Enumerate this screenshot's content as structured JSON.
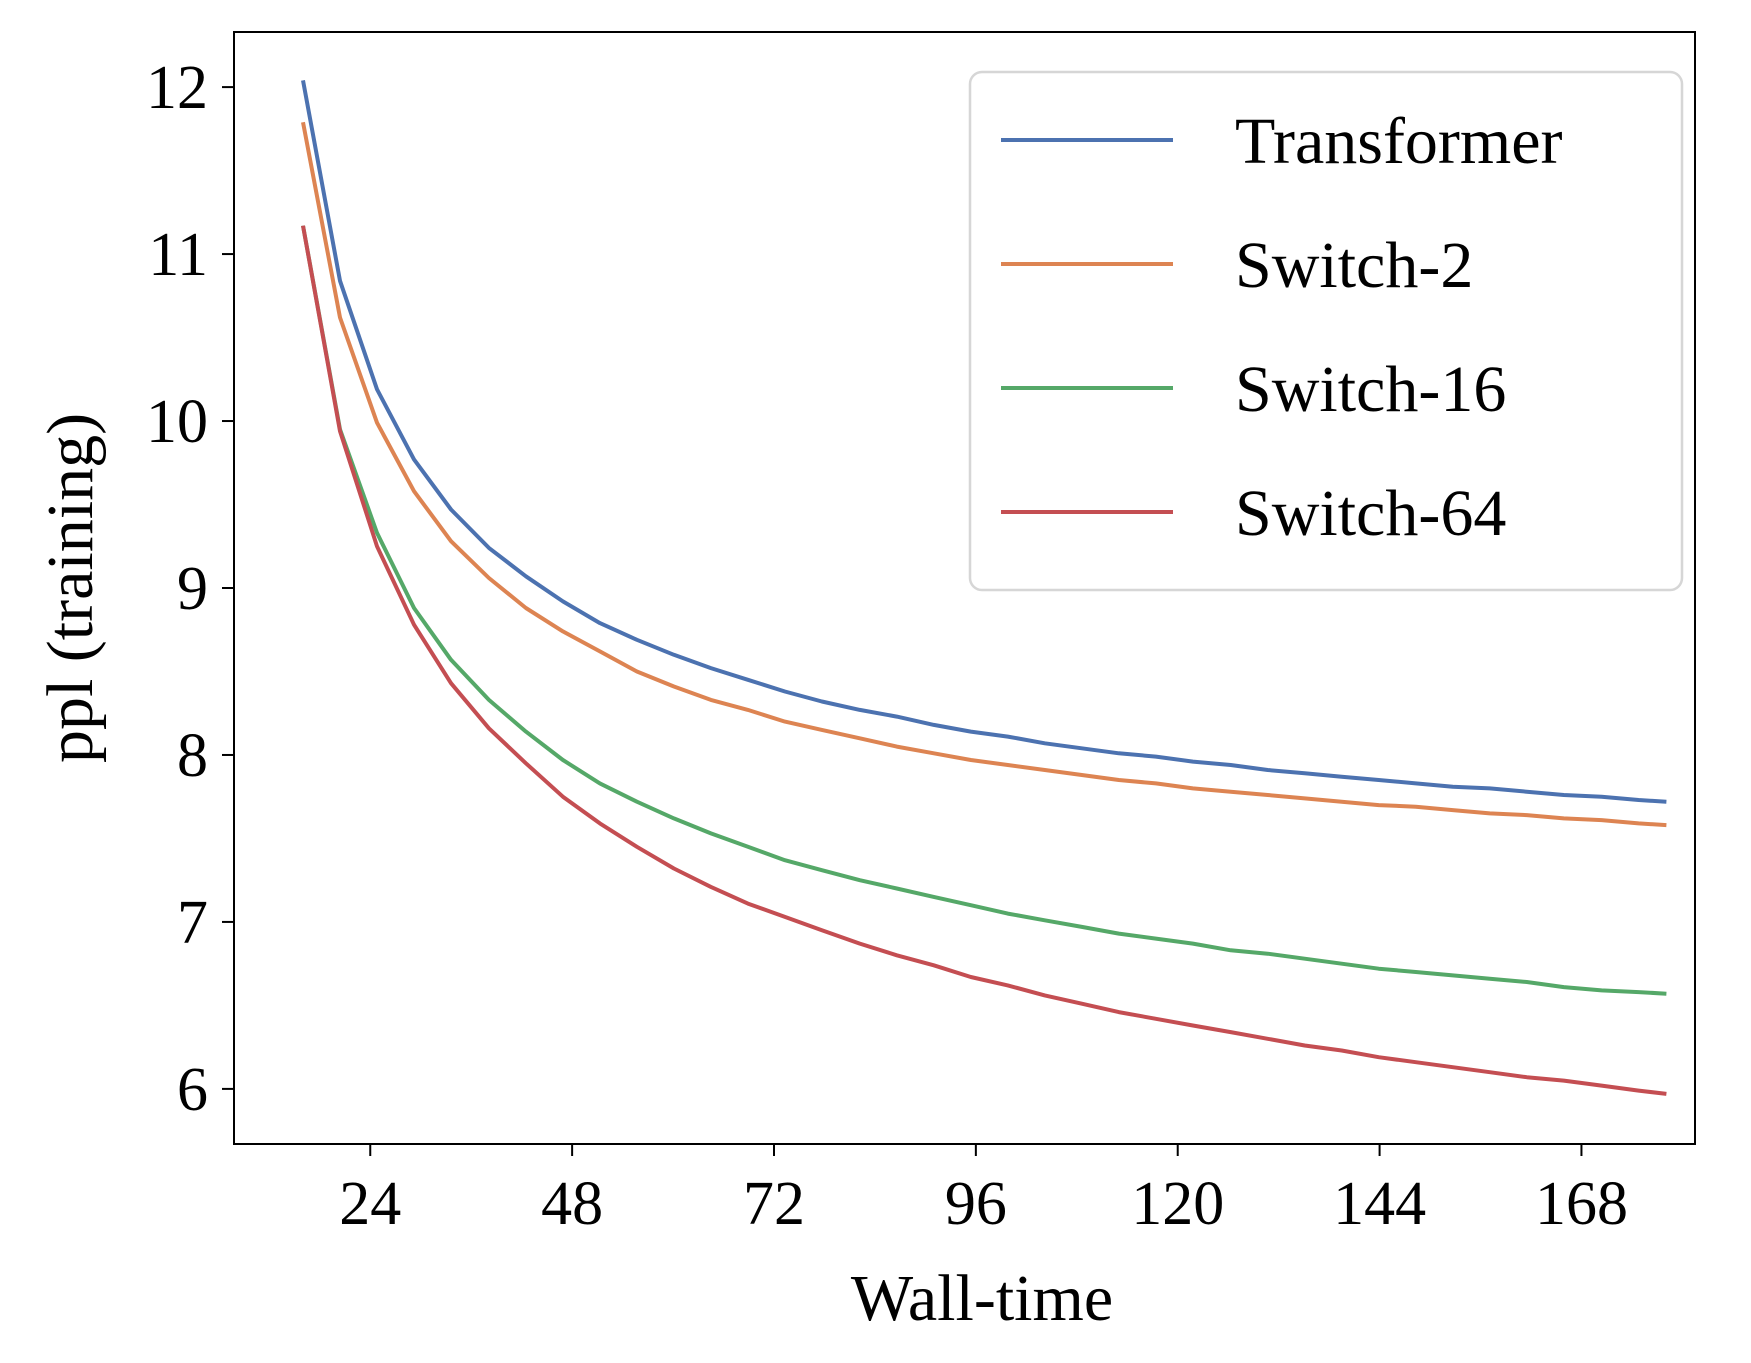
{
  "chart_data": {
    "type": "line",
    "title": "",
    "xlabel": "Wall-time",
    "ylabel": "ppl (training)",
    "xlim": [
      7.8,
      181.5
    ],
    "ylim": [
      5.67,
      12.33
    ],
    "xticks": [
      24,
      48,
      72,
      96,
      120,
      144,
      168
    ],
    "xtick_labels": [
      "24",
      "48",
      "72",
      "96",
      "120",
      144,
      168
    ],
    "yticks": [
      6,
      7,
      8,
      9,
      10,
      11,
      12
    ],
    "ytick_labels": [
      "6",
      "7",
      "8",
      "9",
      "10",
      "11",
      "12"
    ],
    "grid": false,
    "legend_position": "top-right",
    "x": [
      16,
      20.4,
      24.8,
      29.2,
      33.6,
      38.1,
      42.5,
      46.9,
      51.3,
      55.7,
      60.1,
      64.5,
      68.9,
      73.3,
      77.7,
      82.2,
      86.6,
      91,
      95.4,
      99.8,
      104.2,
      108.6,
      113,
      117.4,
      121.8,
      126.3,
      130.7,
      135.1,
      139.5,
      143.9,
      148.3,
      152.7,
      157.1,
      161.5,
      165.9,
      170.4,
      174.8,
      178.1
    ],
    "series": [
      {
        "name": "Transformer",
        "color": "#4C72B0",
        "values": [
          12.04,
          10.84,
          10.19,
          9.77,
          9.47,
          9.24,
          9.07,
          8.92,
          8.79,
          8.69,
          8.6,
          8.52,
          8.45,
          8.38,
          8.32,
          8.27,
          8.23,
          8.18,
          8.14,
          8.11,
          8.07,
          8.04,
          8.01,
          7.99,
          7.96,
          7.94,
          7.91,
          7.89,
          7.87,
          7.85,
          7.83,
          7.81,
          7.8,
          7.78,
          7.76,
          7.75,
          7.73,
          7.72
        ]
      },
      {
        "name": "Switch-2",
        "color": "#DD8452",
        "values": [
          11.79,
          10.62,
          9.99,
          9.58,
          9.28,
          9.06,
          8.88,
          8.74,
          8.62,
          8.5,
          8.41,
          8.33,
          8.27,
          8.2,
          8.15,
          8.1,
          8.05,
          8.01,
          7.97,
          7.94,
          7.91,
          7.88,
          7.85,
          7.83,
          7.8,
          7.78,
          7.76,
          7.74,
          7.72,
          7.7,
          7.69,
          7.67,
          7.65,
          7.64,
          7.62,
          7.61,
          7.59,
          7.58
        ]
      },
      {
        "name": "Switch-16",
        "color": "#55A868",
        "values": [
          11.17,
          9.95,
          9.33,
          8.88,
          8.57,
          8.33,
          8.14,
          7.97,
          7.83,
          7.72,
          7.62,
          7.53,
          7.45,
          7.37,
          7.31,
          7.25,
          7.2,
          7.15,
          7.1,
          7.05,
          7.01,
          6.97,
          6.93,
          6.9,
          6.87,
          6.83,
          6.81,
          6.78,
          6.75,
          6.72,
          6.7,
          6.68,
          6.66,
          6.64,
          6.61,
          6.59,
          6.58,
          6.57
        ]
      },
      {
        "name": "Switch-64",
        "color": "#C44E52",
        "values": [
          11.17,
          9.94,
          9.25,
          8.78,
          8.43,
          8.16,
          7.95,
          7.75,
          7.59,
          7.45,
          7.32,
          7.21,
          7.11,
          7.03,
          6.95,
          6.87,
          6.8,
          6.74,
          6.67,
          6.62,
          6.56,
          6.51,
          6.46,
          6.42,
          6.38,
          6.34,
          6.3,
          6.26,
          6.23,
          6.19,
          6.16,
          6.13,
          6.1,
          6.07,
          6.05,
          6.02,
          5.99,
          5.97
        ]
      }
    ]
  }
}
